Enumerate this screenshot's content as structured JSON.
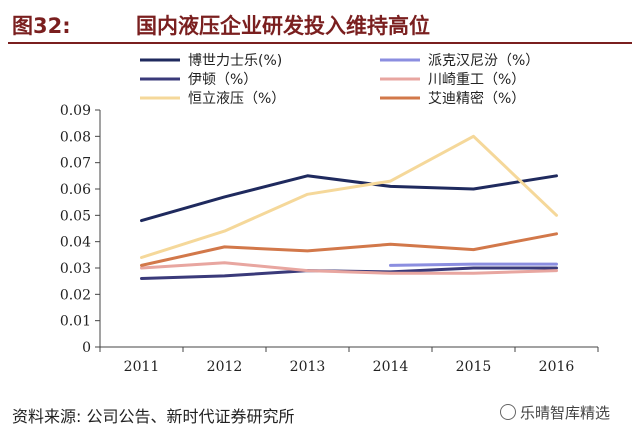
{
  "header": {
    "figure_number": "图32:",
    "title": "国内液压企业研发投入维持高位"
  },
  "footer": {
    "source": "资料来源: 公司公告、新时代证券研究所",
    "watermark": "乐晴智库精选"
  },
  "colors": {
    "title": "#7a1f1f",
    "axis": "#444444"
  },
  "chart_data": {
    "type": "line",
    "title": "",
    "xlabel": "",
    "ylabel": "",
    "x": [
      "2011",
      "2012",
      "2013",
      "2014",
      "2015",
      "2016"
    ],
    "ylim": [
      0,
      0.09
    ],
    "yticks": [
      0,
      0.01,
      0.02,
      0.03,
      0.04,
      0.05,
      0.06,
      0.07,
      0.08,
      0.09
    ],
    "ytick_labels": [
      "0",
      "0.01",
      "0.02",
      "0.03",
      "0.04",
      "0.05",
      "0.06",
      "0.07",
      "0.08",
      "0.09"
    ],
    "grid": false,
    "legend_position": "top",
    "series": [
      {
        "name": "博世力士乐(%)",
        "color": "#1f2a5e",
        "values": [
          0.048,
          0.057,
          0.065,
          0.061,
          0.06,
          0.065
        ]
      },
      {
        "name": "派克汉尼汾（%）",
        "color": "#8b8ee0",
        "values": [
          null,
          null,
          null,
          0.031,
          0.0315,
          0.0315
        ]
      },
      {
        "name": "伊顿（%）",
        "color": "#3a3a7a",
        "values": [
          0.026,
          0.027,
          0.029,
          0.0285,
          0.03,
          0.03
        ]
      },
      {
        "name": "川崎重工（%）",
        "color": "#e8a6a0",
        "values": [
          0.03,
          0.032,
          0.029,
          0.028,
          0.028,
          0.029
        ]
      },
      {
        "name": "恒立液压（%）",
        "color": "#f5d89a",
        "values": [
          0.034,
          0.044,
          0.058,
          0.063,
          0.08,
          0.05
        ]
      },
      {
        "name": "艾迪精密（%）",
        "color": "#d2784a",
        "values": [
          0.031,
          0.038,
          0.0365,
          0.039,
          0.037,
          0.043
        ]
      }
    ]
  }
}
